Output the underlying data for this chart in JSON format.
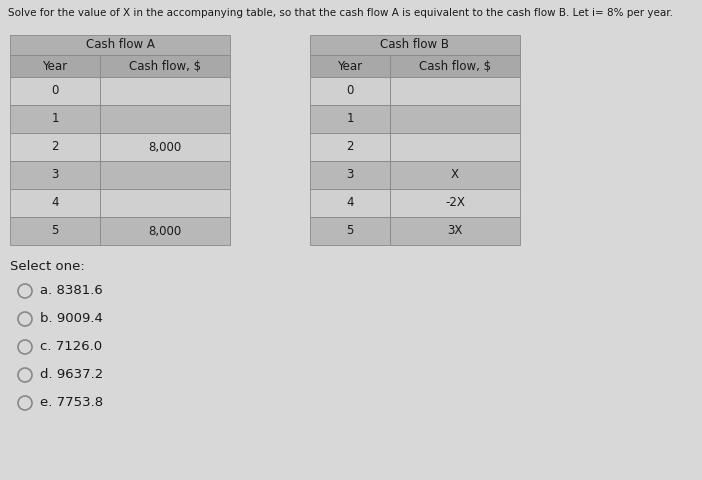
{
  "title": "Solve for the value of X in the accompanying table, so that the cash flow A is equivalent to the cash flow B. Let i= 8% per year.",
  "table_a_label": "Cash flow A",
  "table_b_label": "Cash flow B",
  "table_a_rows": [
    [
      "0",
      ""
    ],
    [
      "1",
      ""
    ],
    [
      "2",
      "8,000"
    ],
    [
      "3",
      ""
    ],
    [
      "4",
      ""
    ],
    [
      "5",
      "8,000"
    ]
  ],
  "table_b_rows": [
    [
      "0",
      ""
    ],
    [
      "1",
      ""
    ],
    [
      "2",
      ""
    ],
    [
      "3",
      "X"
    ],
    [
      "4",
      "-2X"
    ],
    [
      "5",
      "3X"
    ]
  ],
  "select_label": "Select one:",
  "options": [
    "a. 8381.6",
    "b. 9009.4",
    "c. 7126.0",
    "d. 9637.2",
    "e. 7753.8"
  ],
  "bg_color": "#d8d8d8",
  "cell_light": "#d0d0d0",
  "cell_dark": "#b8b8b8",
  "cell_header": "#a8a8a8",
  "cell_label": "#b0b0b0",
  "border_color": "#888888",
  "text_color": "#1a1a1a",
  "font_size_title": 7.5,
  "font_size_table": 8.5,
  "font_size_options": 9.5
}
